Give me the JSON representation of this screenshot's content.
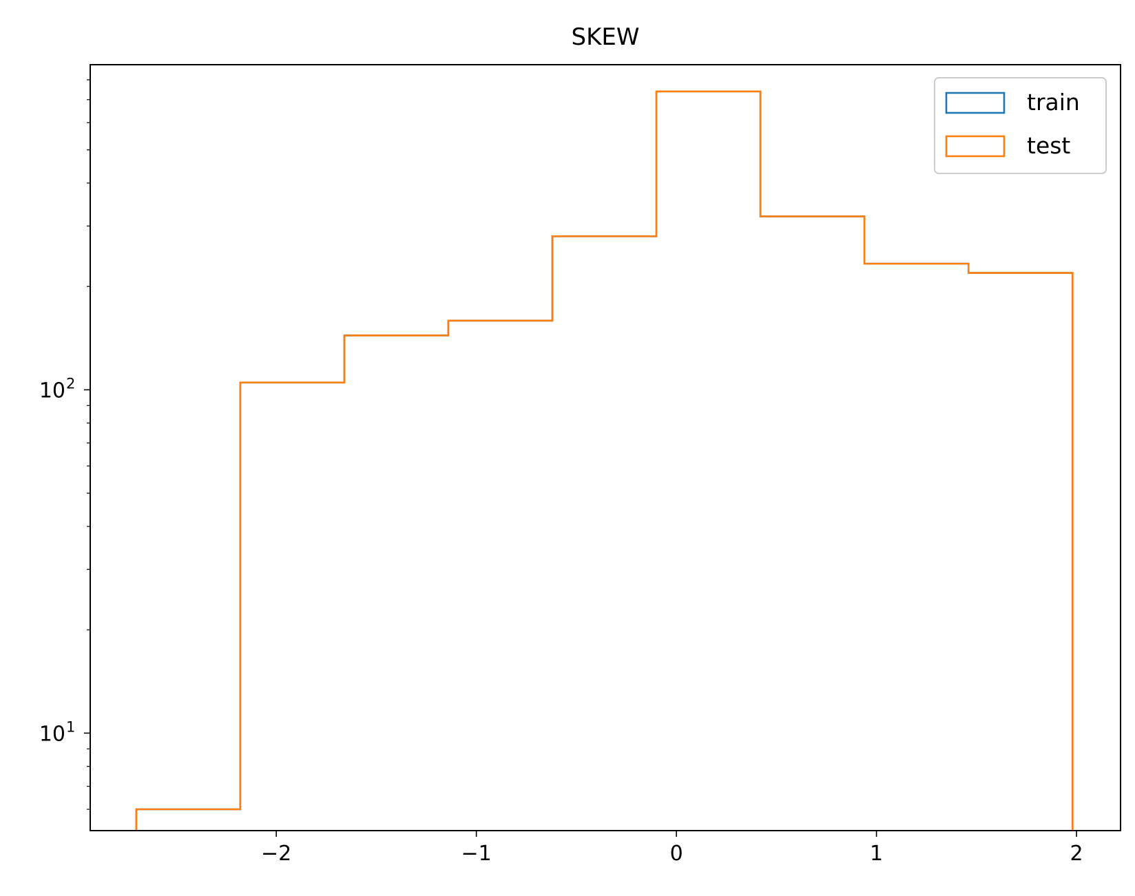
{
  "chart_data": {
    "type": "histogram",
    "title": "SKEW",
    "xlabel": "",
    "ylabel": "",
    "xlim": [
      -2.93,
      2.22
    ],
    "ylim": [
      5.2,
      885
    ],
    "yscale": "log",
    "grid": false,
    "legend_position": "top-right",
    "x_ticks": [
      {
        "value": -2,
        "label": "−2"
      },
      {
        "value": -1,
        "label": "−1"
      },
      {
        "value": 0,
        "label": "0"
      },
      {
        "value": 1,
        "label": "1"
      },
      {
        "value": 2,
        "label": "2"
      }
    ],
    "y_ticks": [
      {
        "value": 10,
        "base": "10",
        "exp": "1"
      },
      {
        "value": 100,
        "base": "10",
        "exp": "2"
      }
    ],
    "bin_edges": [
      -2.7,
      -2.18,
      -1.66,
      -1.14,
      -0.62,
      -0.1,
      0.42,
      0.94,
      1.46,
      1.98
    ],
    "series": [
      {
        "name": "train",
        "color": "#1f77b4",
        "counts": [
          6,
          105,
          144,
          159,
          280,
          740,
          320,
          233,
          219
        ]
      },
      {
        "name": "test",
        "color": "#ff7f0e",
        "counts": [
          6,
          105,
          144,
          159,
          280,
          740,
          320,
          233,
          219
        ]
      }
    ]
  }
}
